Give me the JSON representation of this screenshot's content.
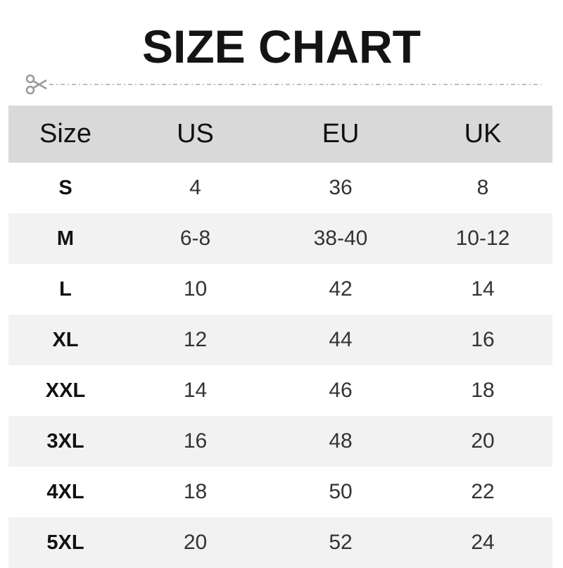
{
  "title": "SIZE CHART",
  "cut_line": {
    "icon": "scissors-icon"
  },
  "colors": {
    "header_bg": "#d9d9d9",
    "alt_row_bg": "#f2f2f2",
    "scissors": "#999999"
  },
  "table": {
    "headers": [
      "Size",
      "US",
      "EU",
      "UK"
    ],
    "rows": [
      [
        "S",
        "4",
        "36",
        "8"
      ],
      [
        "M",
        "6-8",
        "38-40",
        "10-12"
      ],
      [
        "L",
        "10",
        "42",
        "14"
      ],
      [
        "XL",
        "12",
        "44",
        "16"
      ],
      [
        "XXL",
        "14",
        "46",
        "18"
      ],
      [
        "3XL",
        "16",
        "48",
        "20"
      ],
      [
        "4XL",
        "18",
        "50",
        "22"
      ],
      [
        "5XL",
        "20",
        "52",
        "24"
      ]
    ]
  }
}
